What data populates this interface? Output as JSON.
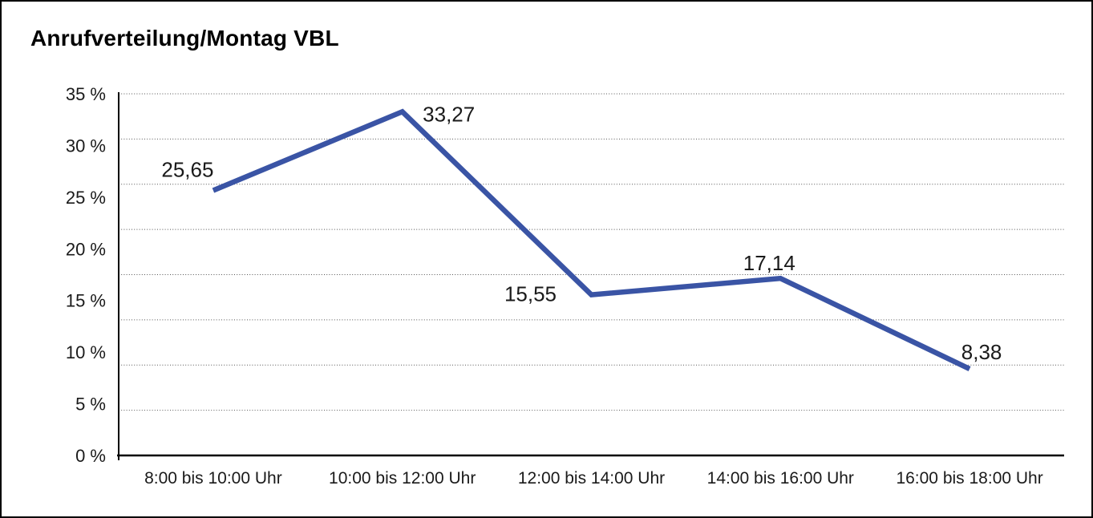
{
  "title": "Anrufverteilung/Montag VBL",
  "chart_data": {
    "type": "line",
    "title": "Anrufverteilung/Montag VBL",
    "categories": [
      "8:00 bis 10:00 Uhr",
      "10:00 bis 12:00 Uhr",
      "12:00 bis 14:00 Uhr",
      "14:00 bis 16:00 Uhr",
      "16:00 bis 18:00 Uhr"
    ],
    "values": [
      25.65,
      33.27,
      15.55,
      17.14,
      8.38
    ],
    "value_labels": [
      "25,65",
      "33,27",
      "15,55",
      "17,14",
      "8,38"
    ],
    "y_ticks": [
      "35 %",
      "30 %",
      "25 %",
      "20 %",
      "15 %",
      "10 %",
      "5 %",
      "0 %"
    ],
    "ylim": [
      0,
      35
    ],
    "y_unit": "%",
    "xlabel": "",
    "ylabel": "",
    "legend": "none",
    "grid": "horizontal-dotted",
    "line_color": "#3A54A5",
    "text_color": "#1a1a1a",
    "grid_color": "#555555"
  }
}
